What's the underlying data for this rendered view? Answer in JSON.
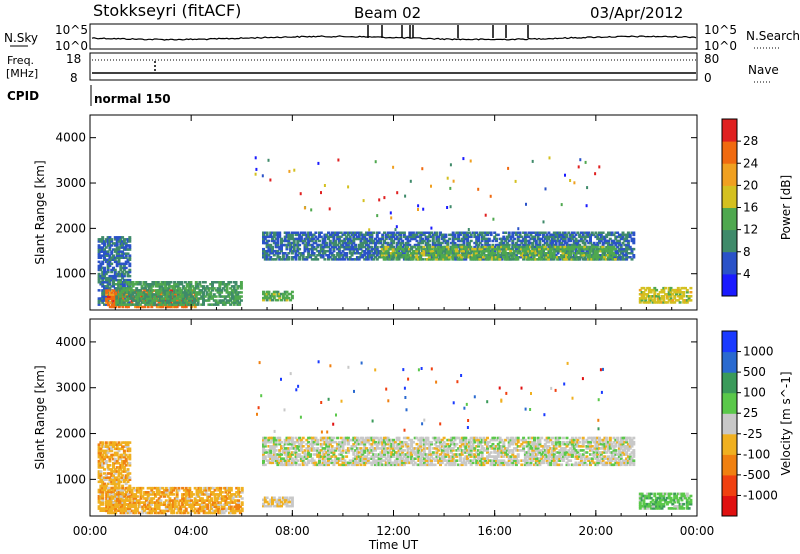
{
  "header": {
    "station": "Stokkseyri (fitACF)",
    "beam": "Beam 02",
    "date": "03/Apr/2012"
  },
  "strips": {
    "nsky_label": "N.Sky",
    "nsearch_label": "N.Search",
    "nsky_ticks": [
      "10^5",
      "10^0"
    ],
    "nsearch_ticks": [
      "10^5",
      "10^0"
    ],
    "freq_label": "Freq.",
    "freq_unit": "[MHz]",
    "freq_ticks": [
      "18",
      "8"
    ],
    "nave_label": "Nave",
    "nave_ticks": [
      "80",
      "0"
    ],
    "cpid_label": "CPID",
    "cpid_value": "normal 150"
  },
  "chart_data": [
    {
      "type": "heatmap",
      "title": "",
      "xlabel": "Time UT",
      "ylabel": "Slant Range [km]",
      "x_range_hours": [
        0,
        24
      ],
      "x_ticks": [
        "00:00",
        "04:00",
        "08:00",
        "12:00",
        "16:00",
        "20:00",
        "00:00"
      ],
      "ylim": [
        200,
        4500
      ],
      "y_ticks": [
        "1000",
        "2000",
        "3000",
        "4000"
      ],
      "colorbar": {
        "label": "Power [dB]",
        "ticks": [
          "4",
          "8",
          "12",
          "16",
          "20",
          "24",
          "28"
        ],
        "colors": [
          "#1a1aff",
          "#2a52c8",
          "#3f8a6a",
          "#4fa84f",
          "#d4c020",
          "#f0a020",
          "#f06a10",
          "#e02020"
        ],
        "range": [
          0,
          32
        ]
      },
      "echo_regions": [
        {
          "t_start": 0.3,
          "t_end": 1.6,
          "r_start": 300,
          "r_end": 1800,
          "level": 8,
          "note": "early scatter"
        },
        {
          "t_start": 0.6,
          "t_end": 4.2,
          "r_start": 250,
          "r_end": 650,
          "level": 26
        },
        {
          "t_start": 1.0,
          "t_end": 6.0,
          "r_start": 300,
          "r_end": 800,
          "level": 12
        },
        {
          "t_start": 6.8,
          "t_end": 8.0,
          "r_start": 400,
          "r_end": 600,
          "level": 14
        },
        {
          "t_start": 6.8,
          "t_end": 21.5,
          "r_start": 1300,
          "r_end": 1900,
          "level": 8
        },
        {
          "t_start": 11.5,
          "t_end": 20.8,
          "r_start": 1300,
          "r_end": 1600,
          "level": 14
        },
        {
          "t_start": 21.7,
          "t_end": 23.8,
          "r_start": 350,
          "r_end": 700,
          "level": 18
        }
      ]
    },
    {
      "type": "heatmap",
      "title": "",
      "xlabel": "Time UT",
      "ylabel": "Slant Range [km]",
      "x_range_hours": [
        0,
        24
      ],
      "x_ticks": [
        "00:00",
        "04:00",
        "08:00",
        "12:00",
        "16:00",
        "20:00",
        "00:00"
      ],
      "ylim": [
        200,
        4500
      ],
      "y_ticks": [
        "1000",
        "2000",
        "3000",
        "4000"
      ],
      "colorbar": {
        "label": "Velocity [m s^-1]",
        "ticks": [
          "1000",
          "500",
          "100",
          "25",
          "-25",
          "-100",
          "-500",
          "-1000"
        ],
        "colors": [
          "#1a3aff",
          "#2a6ad0",
          "#3a9a5a",
          "#5ac84a",
          "#c8c8c8",
          "#f0b020",
          "#f08010",
          "#f04010",
          "#e01010"
        ],
        "range": [
          -1200,
          1200
        ]
      },
      "echo_regions": [
        {
          "t_start": 0.3,
          "t_end": 1.6,
          "r_start": 300,
          "r_end": 1800,
          "level": 300
        },
        {
          "t_start": 0.6,
          "t_end": 6.0,
          "r_start": 250,
          "r_end": 800,
          "level": 300
        },
        {
          "t_start": 6.8,
          "t_end": 8.0,
          "r_start": 400,
          "r_end": 600,
          "level": 100
        },
        {
          "t_start": 6.8,
          "t_end": 21.5,
          "r_start": 1300,
          "r_end": 1900,
          "level": 0
        },
        {
          "t_start": 21.7,
          "t_end": 23.8,
          "r_start": 350,
          "r_end": 700,
          "level": -300
        }
      ]
    }
  ]
}
